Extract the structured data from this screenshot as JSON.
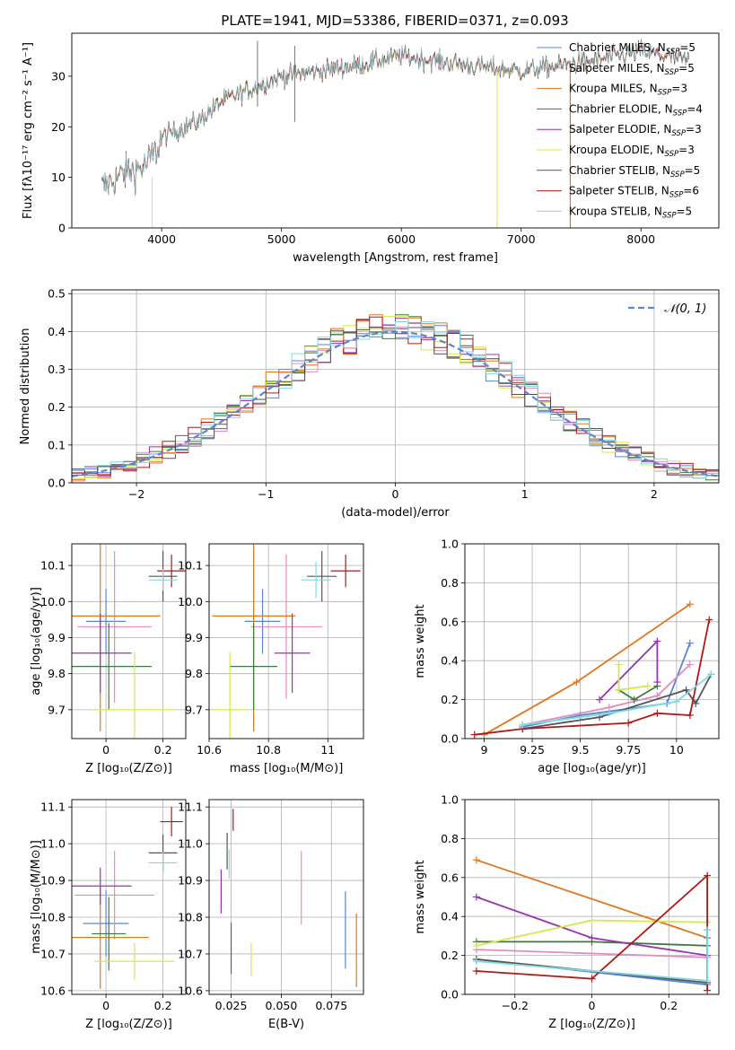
{
  "figure_title": "PLATE=1941, MJD=53386, FIBERID=0371, z=0.093",
  "colors": {
    "chabrier_miles": "#5b84d3",
    "salpeter_miles": "#e48bbf",
    "kroupa_miles": "#e0761c",
    "chabrier_elodie": "#3d7a3d",
    "salpeter_elodie": "#9a32b4",
    "kroupa_elodie": "#d3e84a",
    "chabrier_stelib": "#555555",
    "salpeter_stelib": "#b01818",
    "kroupa_stelib": "#7fd9e0",
    "normal": "#5b84d3",
    "grid": "#b0b0b0"
  },
  "legend_spectrum": [
    {
      "label": "Chabrier MILES, N",
      "sub": "SSP",
      "tail": "=5",
      "color_key": "chabrier_miles"
    },
    {
      "label": "Salpeter MILES, N",
      "sub": "SSP",
      "tail": "=5",
      "color_key": "salpeter_miles"
    },
    {
      "label": "Kroupa MILES, N",
      "sub": "SSP",
      "tail": "=3",
      "color_key": "kroupa_miles"
    },
    {
      "label": "Chabrier ELODIE, N",
      "sub": "SSP",
      "tail": "=4",
      "color_key": "chabrier_elodie"
    },
    {
      "label": "Salpeter ELODIE, N",
      "sub": "SSP",
      "tail": "=3",
      "color_key": "salpeter_elodie"
    },
    {
      "label": "Kroupa ELODIE, N",
      "sub": "SSP",
      "tail": "=3",
      "color_key": "kroupa_elodie"
    },
    {
      "label": "Chabrier STELIB, N",
      "sub": "SSP",
      "tail": "=5",
      "color_key": "chabrier_stelib"
    },
    {
      "label": "Salpeter STELIB, N",
      "sub": "SSP",
      "tail": "=6",
      "color_key": "salpeter_stelib"
    },
    {
      "label": "Kroupa STELIB, N",
      "sub": "SSP",
      "tail": "=5",
      "color_key": "kroupa_stelib"
    }
  ],
  "legend_hist": "𝒩(0, 1)",
  "chart_data": [
    {
      "id": "spectrum",
      "type": "line",
      "xlabel": "wavelength [Angstrom, rest frame]",
      "ylabel": "Flux [fλ10⁻¹⁷ erg cm⁻² s⁻¹ A⁻¹]",
      "xlim": [
        3250,
        8650
      ],
      "ylim": [
        0,
        38.5
      ],
      "xticks": [
        4000,
        5000,
        6000,
        7000,
        8000
      ],
      "yticks": [
        0,
        10,
        20,
        30
      ],
      "x_range": [
        3500,
        8400
      ],
      "continuum": {
        "x": [
          3500,
          3700,
          3850,
          3950,
          4000,
          4100,
          4300,
          4500,
          4700,
          5000,
          5300,
          5600,
          6000,
          6300,
          6600,
          7000,
          7300,
          7600,
          8000,
          8400
        ],
        "y": [
          8,
          11,
          12,
          15,
          18,
          19,
          21,
          25,
          27,
          30,
          31,
          32,
          34,
          33,
          32,
          31,
          32,
          33,
          35,
          33
        ]
      }
    },
    {
      "id": "residual-hist",
      "type": "histogram",
      "xlabel": "(data-model)/error",
      "ylabel": "Normed distribution",
      "xlim": [
        -2.5,
        2.5
      ],
      "ylim": [
        0,
        0.51
      ],
      "xticks": [
        -2,
        -1,
        0,
        1,
        2
      ],
      "yticks": [
        0,
        0.1,
        0.2,
        0.3,
        0.4,
        0.5
      ],
      "bin_width": 0.1,
      "normal_curve": {
        "mean": 0,
        "sigma": 1
      }
    },
    {
      "id": "age-vs-z",
      "type": "errorbar",
      "xlabel": "Z [log₁₀(Z/Z⊙)]",
      "ylabel": "age  [log₁₀(age/yr)]",
      "xlim": [
        -0.12,
        0.28
      ],
      "ylim": [
        9.62,
        10.16
      ],
      "xticks": [
        0.0,
        0.2
      ],
      "yticks": [
        9.7,
        9.8,
        9.9,
        10.0,
        10.1
      ],
      "points": [
        {
          "key": "chabrier_miles",
          "x": 0.0,
          "y": 9.945,
          "xerr": 0.07,
          "yerr": 0.09
        },
        {
          "key": "salpeter_miles",
          "x": 0.03,
          "y": 9.93,
          "xerr": 0.13,
          "yerr": 0.21
        },
        {
          "key": "kroupa_miles",
          "x": -0.02,
          "y": 9.96,
          "xerr": 0.21,
          "yerr": 0.32
        },
        {
          "key": "chabrier_elodie",
          "x": 0.01,
          "y": 9.82,
          "xerr": 0.15,
          "yerr": 0.12
        },
        {
          "key": "salpeter_elodie",
          "x": -0.02,
          "y": 9.857,
          "xerr": 0.11,
          "yerr": 0.11
        },
        {
          "key": "kroupa_elodie",
          "x": 0.1,
          "y": 9.7,
          "xerr": 0.14,
          "yerr": 0.16
        },
        {
          "key": "chabrier_stelib",
          "x": 0.2,
          "y": 10.07,
          "xerr": 0.05,
          "yerr": 0.07
        },
        {
          "key": "salpeter_stelib",
          "x": 0.23,
          "y": 10.085,
          "xerr": 0.05,
          "yerr": 0.045
        },
        {
          "key": "kroupa_stelib",
          "x": 0.2,
          "y": 10.06,
          "xerr": 0.05,
          "yerr": 0.03
        }
      ]
    },
    {
      "id": "age-vs-mass",
      "type": "errorbar",
      "xlabel": "mass [log₁₀(M/M⊙)]",
      "ylabel": "",
      "xlim": [
        10.6,
        11.12
      ],
      "ylim": [
        9.62,
        10.16
      ],
      "xticks": [
        10.6,
        10.8,
        11.0
      ],
      "yticks": [
        9.7,
        9.8,
        9.9,
        10.0,
        10.1
      ],
      "points": [
        {
          "key": "chabrier_miles",
          "x": 10.78,
          "y": 9.945,
          "xerr": 0.06,
          "yerr": 0.09
        },
        {
          "key": "salpeter_miles",
          "x": 10.86,
          "y": 9.93,
          "xerr": 0.12,
          "yerr": 0.2
        },
        {
          "key": "kroupa_miles",
          "x": 10.75,
          "y": 9.96,
          "xerr": 0.14,
          "yerr": 0.32
        },
        {
          "key": "chabrier_elodie",
          "x": 10.75,
          "y": 9.82,
          "xerr": 0.08,
          "yerr": 0.12
        },
        {
          "key": "salpeter_elodie",
          "x": 10.88,
          "y": 9.857,
          "xerr": 0.06,
          "yerr": 0.11
        },
        {
          "key": "kroupa_elodie",
          "x": 10.67,
          "y": 9.7,
          "xerr": 0.06,
          "yerr": 0.16
        },
        {
          "key": "chabrier_stelib",
          "x": 10.98,
          "y": 10.07,
          "xerr": 0.05,
          "yerr": 0.07
        },
        {
          "key": "salpeter_stelib",
          "x": 11.06,
          "y": 10.085,
          "xerr": 0.05,
          "yerr": 0.045
        },
        {
          "key": "kroupa_stelib",
          "x": 10.96,
          "y": 10.06,
          "xerr": 0.05,
          "yerr": 0.05
        }
      ]
    },
    {
      "id": "weight-vs-age",
      "type": "line",
      "xlabel": "age  [log₁₀(age/yr)]",
      "ylabel": "mass weight",
      "xlim": [
        8.9,
        10.22
      ],
      "ylim": [
        0,
        1
      ],
      "xticks": [
        9.0,
        9.25,
        9.5,
        9.75,
        10.0
      ],
      "yticks": [
        0.0,
        0.2,
        0.4,
        0.6,
        0.8,
        1.0
      ],
      "series": [
        {
          "key": "kroupa_miles",
          "x": [
            9.0,
            9.48,
            10.07
          ],
          "y": [
            0.02,
            0.29,
            0.69
          ]
        },
        {
          "key": "chabrier_miles",
          "x": [
            9.2,
            9.5,
            9.95,
            10.07
          ],
          "y": [
            0.06,
            0.12,
            0.18,
            0.49
          ]
        },
        {
          "key": "salpeter_miles",
          "x": [
            9.2,
            9.65,
            9.9,
            10.07
          ],
          "y": [
            0.07,
            0.16,
            0.22,
            0.38
          ]
        },
        {
          "key": "chabrier_elodie",
          "x": [
            9.7,
            9.78,
            9.9
          ],
          "y": [
            0.25,
            0.2,
            0.27
          ]
        },
        {
          "key": "salpeter_elodie",
          "x": [
            9.6,
            9.9,
            9.9
          ],
          "y": [
            0.2,
            0.5,
            0.29
          ]
        },
        {
          "key": "kroupa_elodie",
          "x": [
            9.7,
            9.7,
            9.85
          ],
          "y": [
            0.38,
            0.25,
            0.27
          ]
        },
        {
          "key": "chabrier_stelib",
          "x": [
            9.2,
            9.6,
            10.05,
            10.1,
            10.18
          ],
          "y": [
            0.05,
            0.11,
            0.25,
            0.18,
            0.33
          ]
        },
        {
          "key": "salpeter_stelib",
          "x": [
            8.95,
            9.2,
            9.75,
            9.9,
            10.07,
            10.17
          ],
          "y": [
            0.02,
            0.05,
            0.08,
            0.13,
            0.12,
            0.61
          ]
        },
        {
          "key": "kroupa_stelib",
          "x": [
            9.2,
            9.65,
            10.0,
            10.18
          ],
          "y": [
            0.07,
            0.13,
            0.19,
            0.33
          ]
        }
      ]
    },
    {
      "id": "mass-vs-z",
      "type": "errorbar",
      "xlabel": "Z [log₁₀(Z/Z⊙)]",
      "ylabel": "mass [log₁₀(M/M⊙)]",
      "xlim": [
        -0.12,
        0.28
      ],
      "ylim": [
        10.59,
        11.12
      ],
      "xticks": [
        0.0,
        0.2
      ],
      "yticks": [
        10.6,
        10.7,
        10.8,
        10.9,
        11.0,
        11.1
      ],
      "points": [
        {
          "key": "chabrier_miles",
          "x": 0.0,
          "y": 10.783,
          "xerr": 0.08,
          "yerr": 0.09
        },
        {
          "key": "salpeter_miles",
          "x": 0.03,
          "y": 10.86,
          "xerr": 0.14,
          "yerr": 0.12
        },
        {
          "key": "kroupa_miles",
          "x": -0.02,
          "y": 10.745,
          "xerr": 0.17,
          "yerr": 0.14
        },
        {
          "key": "chabrier_elodie",
          "x": 0.01,
          "y": 10.755,
          "xerr": 0.06,
          "yerr": 0.1
        },
        {
          "key": "salpeter_elodie",
          "x": -0.02,
          "y": 10.885,
          "xerr": 0.11,
          "yerr": 0.05
        },
        {
          "key": "kroupa_elodie",
          "x": 0.1,
          "y": 10.68,
          "xerr": 0.14,
          "yerr": 0.05
        },
        {
          "key": "chabrier_stelib",
          "x": 0.2,
          "y": 10.975,
          "xerr": 0.05,
          "yerr": 0.05
        },
        {
          "key": "salpeter_stelib",
          "x": 0.23,
          "y": 11.06,
          "xerr": 0.04,
          "yerr": 0.04
        },
        {
          "key": "kroupa_stelib",
          "x": 0.2,
          "y": 10.948,
          "xerr": 0.05,
          "yerr": 0.03
        }
      ]
    },
    {
      "id": "mass-vs-ebv",
      "type": "errorbar",
      "xlabel": "E(B-V)",
      "ylabel": "",
      "xlim": [
        0.014,
        0.091
      ],
      "ylim": [
        10.59,
        11.12
      ],
      "xticks": [
        0.025,
        0.05,
        0.075
      ],
      "tick_labels": [
        "0.025",
        "0.050",
        "0.075"
      ],
      "yticks": [
        10.6,
        10.7,
        10.8,
        10.9,
        11.0,
        11.1
      ],
      "points": [
        {
          "key": "chabrier_miles",
          "x": 0.082,
          "y": 10.765,
          "xerr": 0,
          "yerr": 0.105
        },
        {
          "key": "salpeter_miles",
          "x": 0.06,
          "y": 10.88,
          "xerr": 0,
          "yerr": 0.1
        },
        {
          "key": "kroupa_miles",
          "x": 0.0875,
          "y": 10.71,
          "xerr": 0,
          "yerr": 0.1
        },
        {
          "key": "chabrier_elodie",
          "x": 0.025,
          "y": 10.715,
          "xerr": 0,
          "yerr": 0.07
        },
        {
          "key": "salpeter_elodie",
          "x": 0.02,
          "y": 10.87,
          "xerr": 0,
          "yerr": 0.06
        },
        {
          "key": "kroupa_elodie",
          "x": 0.035,
          "y": 10.685,
          "xerr": 0,
          "yerr": 0.045
        },
        {
          "key": "chabrier_stelib",
          "x": 0.023,
          "y": 10.98,
          "xerr": 0,
          "yerr": 0.05
        },
        {
          "key": "salpeter_stelib",
          "x": 0.026,
          "y": 11.065,
          "xerr": 0,
          "yerr": 0.03
        },
        {
          "key": "kroupa_stelib",
          "x": 0.024,
          "y": 10.945,
          "xerr": 0,
          "yerr": 0.04
        }
      ]
    },
    {
      "id": "weight-vs-z",
      "type": "line",
      "xlabel": "Z [log₁₀(Z/Z⊙)]",
      "ylabel": "mass weight",
      "xlim": [
        -0.33,
        0.33
      ],
      "ylim": [
        0,
        1
      ],
      "xticks": [
        -0.2,
        0.0,
        0.2
      ],
      "yticks": [
        0.0,
        0.2,
        0.4,
        0.6,
        0.8,
        1.0
      ],
      "series": [
        {
          "key": "kroupa_miles",
          "x": [
            -0.3,
            0.3
          ],
          "y": [
            0.69,
            0.29
          ]
        },
        {
          "key": "chabrier_miles",
          "x": [
            -0.3,
            0.3,
            0.3
          ],
          "y": [
            0.18,
            0.05,
            0.29
          ]
        },
        {
          "key": "salpeter_miles",
          "x": [
            -0.3,
            0.3
          ],
          "y": [
            0.23,
            0.19
          ]
        },
        {
          "key": "chabrier_elodie",
          "x": [
            -0.3,
            0.0,
            0.3
          ],
          "y": [
            0.27,
            0.27,
            0.25
          ]
        },
        {
          "key": "salpeter_elodie",
          "x": [
            -0.3,
            0.0,
            0.3
          ],
          "y": [
            0.5,
            0.29,
            0.2
          ]
        },
        {
          "key": "kroupa_elodie",
          "x": [
            -0.3,
            0.0,
            0.3
          ],
          "y": [
            0.25,
            0.38,
            0.37
          ]
        },
        {
          "key": "chabrier_stelib",
          "x": [
            -0.3,
            0.3,
            0.3
          ],
          "y": [
            0.18,
            0.06,
            0.33
          ]
        },
        {
          "key": "salpeter_stelib",
          "x": [
            -0.3,
            0.0,
            0.3,
            0.3
          ],
          "y": [
            0.12,
            0.08,
            0.61,
            0.02
          ]
        },
        {
          "key": "kroupa_stelib",
          "x": [
            -0.3,
            0.3,
            0.3
          ],
          "y": [
            0.17,
            0.07,
            0.33
          ]
        }
      ]
    }
  ]
}
